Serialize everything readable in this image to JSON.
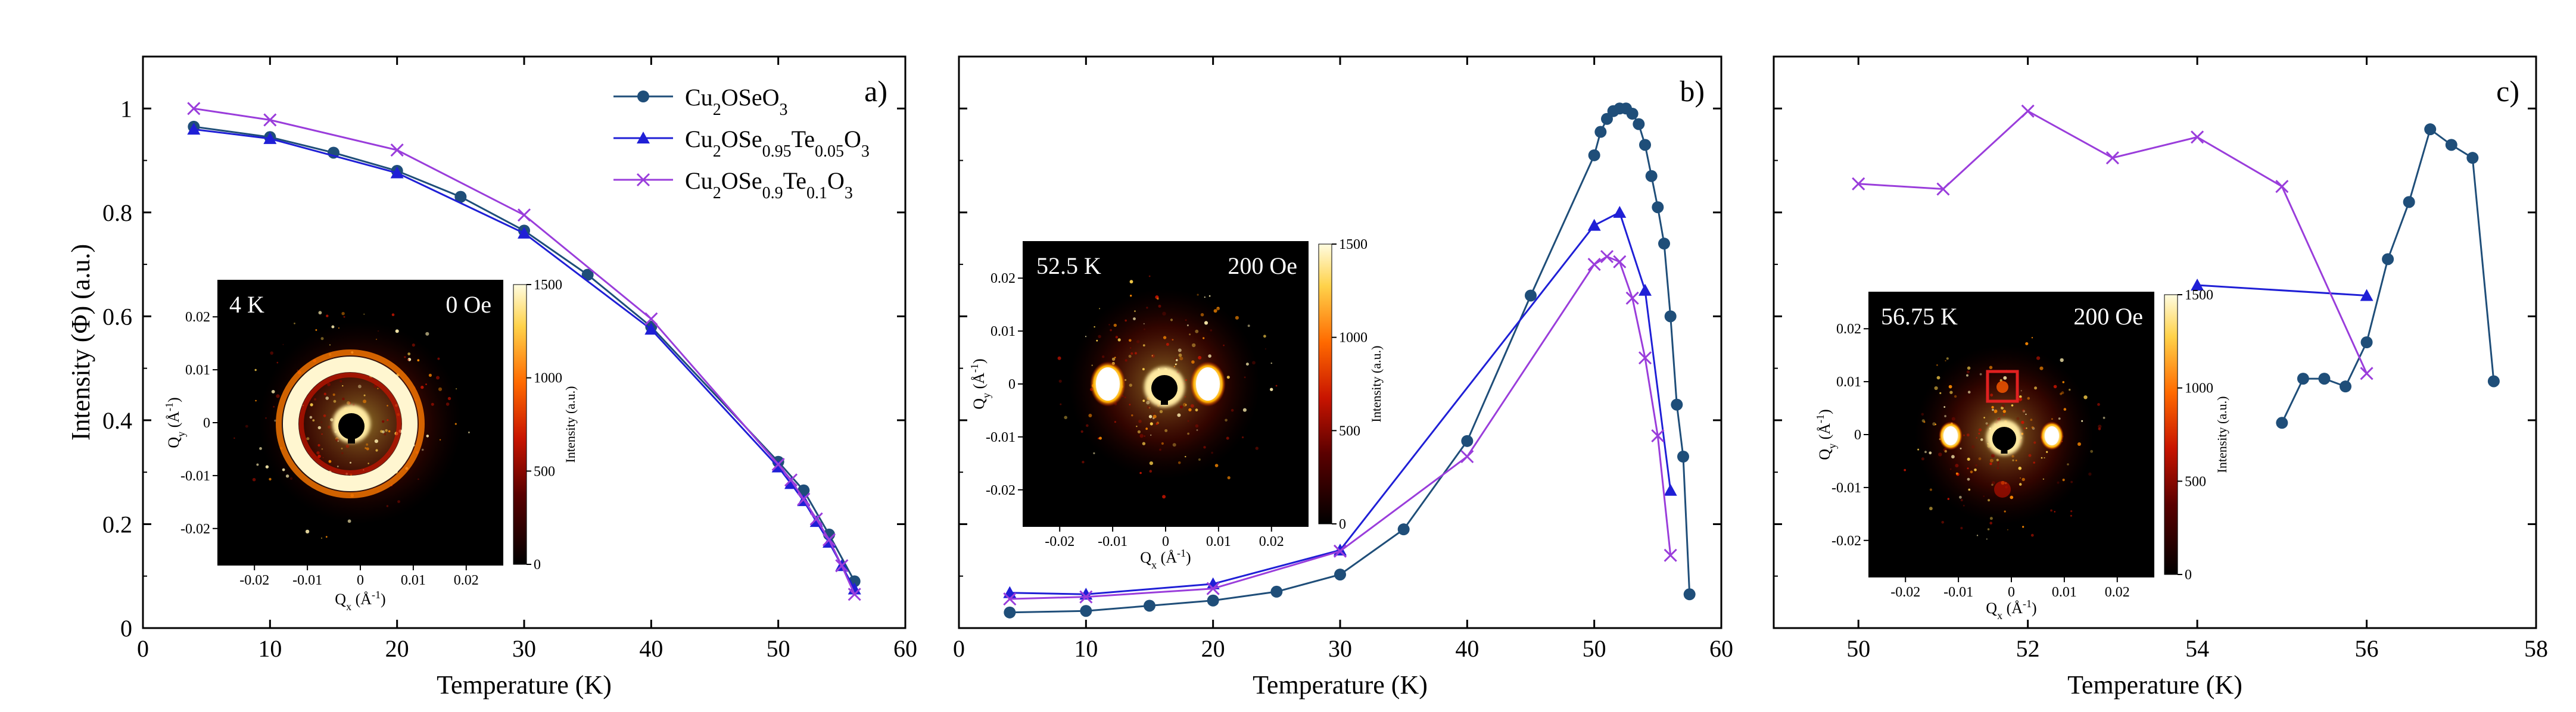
{
  "colors": {
    "cu2oseo3": "#1f4e79",
    "te005": "#1f1fd6",
    "te01": "#9a3ddb",
    "axis": "#000000",
    "inset_bg": "#000000",
    "highlight_box": "#e02020"
  },
  "chart_data": [
    {
      "type": "line",
      "panel_label": "a)",
      "xlabel": "Temperature (K)",
      "ylabel": "Intensity (Φ) (a.u.)",
      "xlim": [
        0,
        60
      ],
      "ylim": [
        0,
        1.1
      ],
      "xticks": [
        0,
        10,
        20,
        30,
        40,
        50,
        60
      ],
      "yticks": [
        0,
        0.2,
        0.4,
        0.6,
        0.8,
        1
      ],
      "ytick_labels": [
        "0",
        "0.2",
        "0.4",
        "0.6",
        "0.8",
        "1"
      ],
      "legend": {
        "placement": "top-right",
        "entries": [
          {
            "series": 0,
            "label": "Cu2OSeO3"
          },
          {
            "series": 1,
            "label": "Cu2OSe0.95Te0.05O3"
          },
          {
            "series": 2,
            "label": "Cu2OSe0.9Te0.1O3"
          }
        ]
      },
      "series": [
        {
          "name": "Cu2OSeO3",
          "marker": "circle",
          "x": [
            4,
            10,
            15,
            20,
            25,
            30,
            35,
            40,
            50,
            52,
            54,
            56
          ],
          "y": [
            0.965,
            0.945,
            0.915,
            0.88,
            0.83,
            0.765,
            0.68,
            0.58,
            0.32,
            0.265,
            0.18,
            0.09
          ]
        },
        {
          "name": "Cu2OSe0.95Te0.05O3",
          "marker": "triangle",
          "x": [
            4,
            10,
            20,
            30,
            40,
            50,
            51,
            52,
            53,
            54,
            55,
            56
          ],
          "y": [
            0.96,
            0.942,
            0.876,
            0.76,
            0.575,
            0.31,
            0.278,
            0.245,
            0.205,
            0.165,
            0.12,
            0.075
          ]
        },
        {
          "name": "Cu2OSe0.9Te0.1O3",
          "marker": "cross",
          "x": [
            4,
            10,
            20,
            30,
            40,
            50,
            51,
            52,
            53,
            54,
            55,
            56
          ],
          "y": [
            1.0,
            0.978,
            0.92,
            0.795,
            0.595,
            0.315,
            0.285,
            0.248,
            0.21,
            0.17,
            0.12,
            0.065
          ]
        }
      ],
      "inset": {
        "temperature": "4 K",
        "field": "0 Oe",
        "pattern": "ring",
        "xlabel": "Qx (Å⁻¹)",
        "ylabel": "Qy (Å⁻¹)",
        "xticks": [
          -0.02,
          -0.01,
          0,
          0.01,
          0.02
        ],
        "xtick_labels": [
          "-0.02",
          "-0.01",
          "0",
          "0.01",
          "0.02"
        ],
        "yticks": [
          -0.02,
          -0.01,
          0,
          0.01,
          0.02
        ],
        "ytick_labels": [
          "-0.02",
          "-0.01",
          "0",
          "0.01",
          "0.02"
        ],
        "colorbar_label": "Intensity (a.u.)",
        "colorbar_ticks": [
          0,
          500,
          1000,
          1500
        ],
        "colorbar_tick_labels": [
          "0",
          "500",
          "1000",
          "1500"
        ]
      }
    },
    {
      "type": "line",
      "panel_label": "b)",
      "xlabel": "Temperature (K)",
      "xlim": [
        0,
        60
      ],
      "ylim": [
        0,
        1.1
      ],
      "xticks": [
        0,
        10,
        20,
        30,
        40,
        50,
        60
      ],
      "yticks": [
        0,
        0.2,
        0.4,
        0.6,
        0.8,
        1
      ],
      "series": [
        {
          "name": "Cu2OSeO3",
          "marker": "circle",
          "x": [
            4,
            10,
            15,
            20,
            25,
            30,
            35,
            40,
            45,
            50,
            50.5,
            51,
            51.5,
            52,
            52.5,
            53,
            53.5,
            54,
            54.5,
            55,
            55.5,
            56,
            56.5,
            57,
            57.5
          ],
          "y": [
            0.03,
            0.033,
            0.043,
            0.053,
            0.07,
            0.103,
            0.19,
            0.36,
            0.64,
            0.91,
            0.955,
            0.98,
            0.995,
            1.0,
            1.0,
            0.99,
            0.97,
            0.93,
            0.87,
            0.81,
            0.74,
            0.6,
            0.43,
            0.33,
            0.065
          ]
        },
        {
          "name": "Cu2OSe0.95Te0.05O3",
          "marker": "triangle",
          "x": [
            4,
            10,
            20,
            30,
            50,
            52,
            54,
            56
          ],
          "y": [
            0.068,
            0.065,
            0.085,
            0.15,
            0.775,
            0.8,
            0.65,
            0.265
          ]
        },
        {
          "name": "Cu2OSe0.9Te0.1O3",
          "marker": "cross",
          "x": [
            4,
            10,
            20,
            30,
            40,
            50,
            51,
            52,
            53,
            54,
            55,
            56
          ],
          "y": [
            0.056,
            0.06,
            0.076,
            0.148,
            0.33,
            0.7,
            0.715,
            0.705,
            0.635,
            0.52,
            0.37,
            0.14
          ]
        }
      ],
      "inset": {
        "temperature": "52.5 K",
        "field": "200 Oe",
        "pattern": "two-spot",
        "xlabel": "Qx (Å⁻¹)",
        "ylabel": "Qy (Å⁻¹)",
        "xticks": [
          -0.02,
          -0.01,
          0,
          0.01,
          0.02
        ],
        "xtick_labels": [
          "-0.02",
          "-0.01",
          "0",
          "0.01",
          "0.02"
        ],
        "yticks": [
          -0.02,
          -0.01,
          0,
          0.01,
          0.02
        ],
        "ytick_labels": [
          "-0.02",
          "-0.01",
          "0",
          "0.01",
          "0.02"
        ],
        "colorbar_label": "Intensity (a.u.)",
        "colorbar_ticks": [
          0,
          500,
          1000,
          1500
        ],
        "colorbar_tick_labels": [
          "0",
          "500",
          "1000",
          "1500"
        ]
      }
    },
    {
      "type": "line",
      "panel_label": "c)",
      "xlabel": "Temperature (K)",
      "xlim": [
        49,
        58
      ],
      "ylim": [
        0,
        1.1
      ],
      "xticks": [
        50,
        52,
        54,
        56,
        58
      ],
      "yticks": [
        0,
        0.2,
        0.4,
        0.6,
        0.8,
        1
      ],
      "series": [
        {
          "name": "Cu2OSeO3",
          "marker": "circle",
          "x": [
            55,
            55.25,
            55.5,
            55.75,
            56,
            56.25,
            56.5,
            56.75,
            57,
            57.25,
            57.5
          ],
          "y": [
            0.395,
            0.48,
            0.48,
            0.465,
            0.55,
            0.71,
            0.82,
            0.96,
            0.93,
            0.905,
            0.475
          ]
        },
        {
          "name": "Cu2OSe0.95Te0.05O3",
          "marker": "triangle",
          "x": [
            54,
            56
          ],
          "y": [
            0.66,
            0.64
          ]
        },
        {
          "name": "Cu2OSe0.9Te0.1O3",
          "marker": "cross",
          "x": [
            50,
            51,
            52,
            53,
            54,
            55,
            56
          ],
          "y": [
            0.855,
            0.845,
            0.995,
            0.905,
            0.945,
            0.85,
            0.49
          ]
        }
      ],
      "inset": {
        "temperature": "56.75 K",
        "field": "200 Oe",
        "pattern": "two-spot-highlight",
        "xlabel": "Qx (Å⁻¹)",
        "ylabel": "Qy (Å⁻¹)",
        "xticks": [
          -0.02,
          -0.01,
          0,
          0.01,
          0.02
        ],
        "xtick_labels": [
          "-0.02",
          "-0.01",
          "0",
          "0.01",
          "0.02"
        ],
        "yticks": [
          -0.02,
          -0.01,
          0,
          0.01,
          0.02
        ],
        "ytick_labels": [
          "-0.02",
          "-0.01",
          "0",
          "0.01",
          "0.02"
        ],
        "colorbar_label": "Intensity (a.u.)",
        "colorbar_ticks": [
          0,
          500,
          1000,
          1500
        ],
        "colorbar_tick_labels": [
          "0",
          "500",
          "1000",
          "1500"
        ]
      }
    }
  ]
}
